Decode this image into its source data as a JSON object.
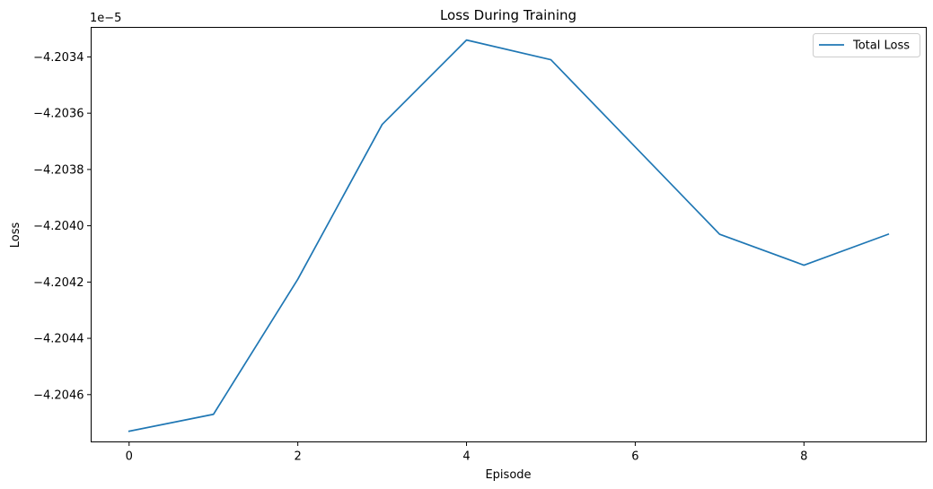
{
  "chart_data": {
    "type": "line",
    "title": "Loss During Training",
    "xlabel": "Episode",
    "ylabel": "Loss",
    "offset_label": "1e−5",
    "x": [
      0,
      1,
      2,
      3,
      4,
      5,
      6,
      7,
      8,
      9
    ],
    "series": [
      {
        "name": "Total Loss",
        "color": "#1f77b4",
        "values": [
          -4.20473,
          -4.20467,
          -4.20419,
          -4.20364,
          -4.20334,
          -4.20341,
          -4.20372,
          -4.20403,
          -4.20414,
          -4.20403
        ]
      }
    ],
    "xlim": [
      -0.45,
      9.45
    ],
    "ylim": [
      -4.204768,
      -4.203295
    ],
    "xticks": [
      0,
      2,
      4,
      6,
      8
    ],
    "xtick_labels": [
      "0",
      "2",
      "4",
      "6",
      "8"
    ],
    "yticks": [
      -4.2046,
      -4.2044,
      -4.2042,
      -4.204,
      -4.2038,
      -4.2036,
      -4.2034
    ],
    "ytick_labels": [
      "−4.2046",
      "−4.2044",
      "−4.2042",
      "−4.2040",
      "−4.2038",
      "−4.2036",
      "−4.2034"
    ],
    "grid": false,
    "legend_position": "top-right"
  }
}
